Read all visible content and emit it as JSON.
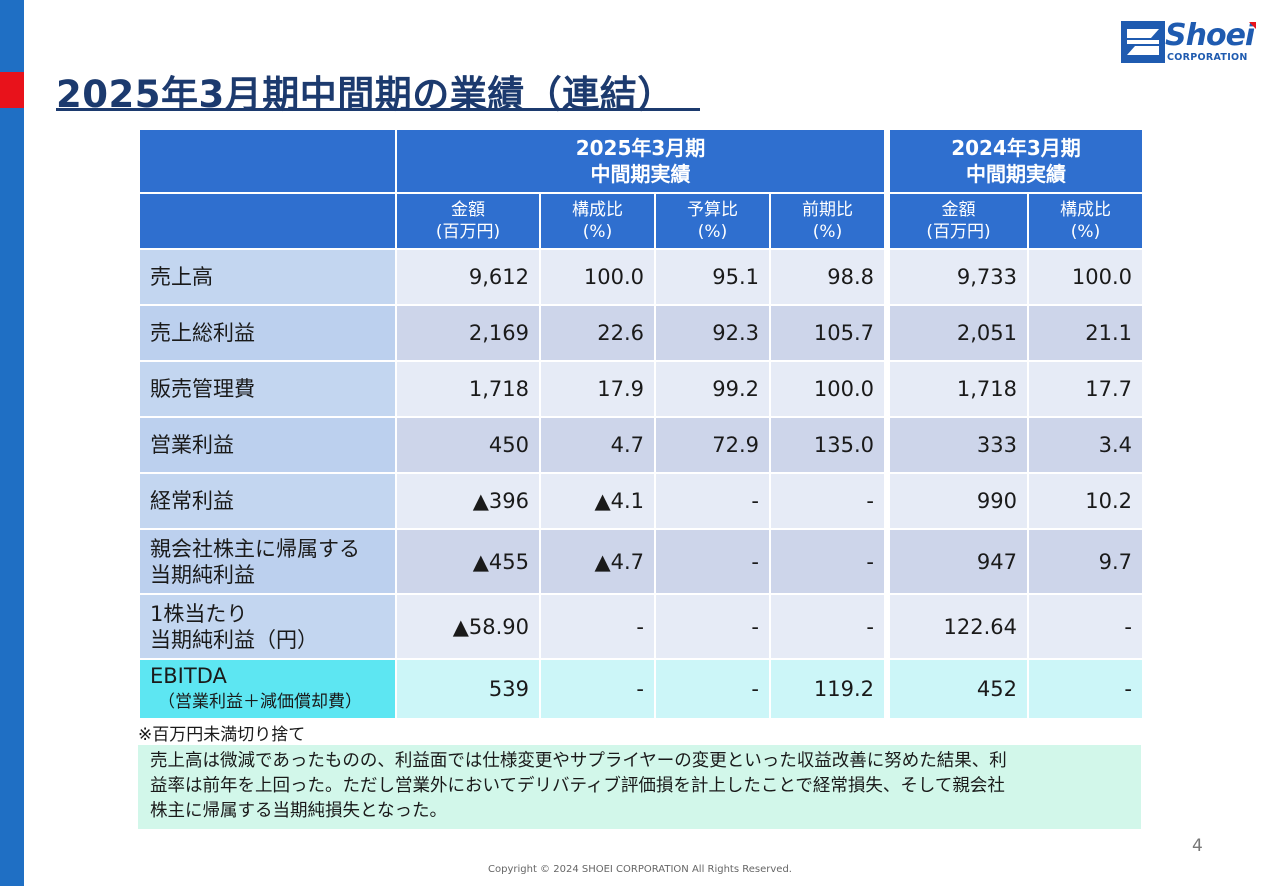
{
  "title": "2025年3月期中間期の業績（連結）",
  "logo": {
    "name": "Shoei",
    "sub": "CORPORATION"
  },
  "table": {
    "group_headers": [
      {
        "line1": "2025年3月期",
        "line2": "中間期実績"
      },
      {
        "line1": "2024年3月期",
        "line2": "中間期実績"
      }
    ],
    "sub_headers": [
      {
        "line1": "金額",
        "line2": "(百万円)"
      },
      {
        "line1": "構成比",
        "line2": "(%)"
      },
      {
        "line1": "予算比",
        "line2": "(%)"
      },
      {
        "line1": "前期比",
        "line2": "(%)"
      },
      {
        "line1": "金額",
        "line2": "(百万円)"
      },
      {
        "line1": "構成比",
        "line2": "(%)"
      }
    ],
    "rows": [
      {
        "label1": "売上高",
        "label2": "",
        "values": [
          "9,612",
          "100.0",
          "95.1",
          "98.8",
          "9,733",
          "100.0"
        ]
      },
      {
        "label1": "売上総利益",
        "label2": "",
        "values": [
          "2,169",
          "22.6",
          "92.3",
          "105.7",
          "2,051",
          "21.1"
        ]
      },
      {
        "label1": "販売管理費",
        "label2": "",
        "values": [
          "1,718",
          "17.9",
          "99.2",
          "100.0",
          "1,718",
          "17.7"
        ]
      },
      {
        "label1": "営業利益",
        "label2": "",
        "values": [
          "450",
          "4.7",
          "72.9",
          "135.0",
          "333",
          "3.4"
        ]
      },
      {
        "label1": "経常利益",
        "label2": "",
        "values": [
          "▲396",
          "▲4.1",
          "-",
          "-",
          "990",
          "10.2"
        ]
      },
      {
        "label1": "親会社株主に帰属する",
        "label2": "当期純利益",
        "values": [
          "▲455",
          "▲4.7",
          "-",
          "-",
          "947",
          "9.7"
        ]
      },
      {
        "label1": "1株当たり",
        "label2": "当期純利益（円）",
        "values": [
          "▲58.90",
          "-",
          "-",
          "-",
          "122.64",
          "-"
        ]
      },
      {
        "label1": "EBITDA",
        "label2": "（営業利益＋減価償却費）",
        "values": [
          "539",
          "-",
          "-",
          "119.2",
          "452",
          "-"
        ]
      }
    ]
  },
  "note": "※百万円未満切り捨て",
  "summary_lines": [
    "売上高は微減であったものの、利益面では仕様変更やサプライヤーの変更といった収益改善に努めた結果、利",
    "益率は前年を上回った。ただし営業外においてデリバティブ評価損を計上したことで経常損失、そして親会社",
    "株主に帰属する当期純損失となった。"
  ],
  "page_number": "4",
  "copyright": "Copyright © 2024 SHOEI CORPORATION All Rights Reserved."
}
